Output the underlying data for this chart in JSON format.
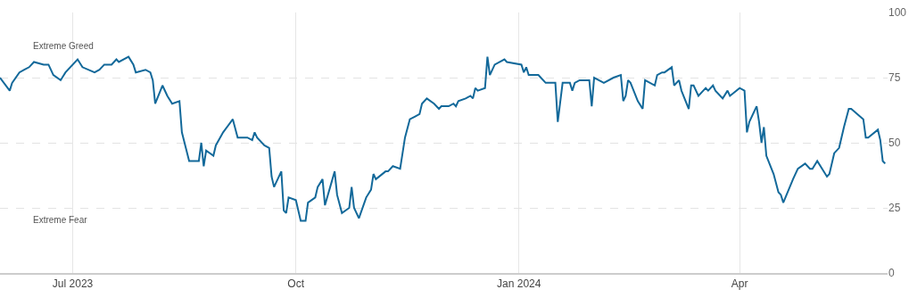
{
  "chart_data": {
    "type": "line",
    "x": [
      "2023-06-01",
      "2023-06-05",
      "2023-06-06",
      "2023-06-09",
      "2023-06-11",
      "2023-06-13",
      "2023-06-15",
      "2023-06-19",
      "2023-06-21",
      "2023-06-23",
      "2023-06-26",
      "2023-06-28",
      "2023-07-03",
      "2023-07-05",
      "2023-07-10",
      "2023-07-12",
      "2023-07-14",
      "2023-07-17",
      "2023-07-19",
      "2023-07-20",
      "2023-07-24",
      "2023-07-26",
      "2023-07-27",
      "2023-07-31",
      "2023-08-02",
      "2023-08-03",
      "2023-08-04",
      "2023-08-07",
      "2023-08-09",
      "2023-08-11",
      "2023-08-14",
      "2023-08-15",
      "2023-08-18",
      "2023-08-22",
      "2023-08-23",
      "2023-08-24",
      "2023-08-25",
      "2023-08-28",
      "2023-08-29",
      "2023-09-01",
      "2023-09-05",
      "2023-09-07",
      "2023-09-11",
      "2023-09-13",
      "2023-09-14",
      "2023-09-15",
      "2023-09-18",
      "2023-09-20",
      "2023-09-21",
      "2023-09-22",
      "2023-09-25",
      "2023-09-26",
      "2023-09-27",
      "2023-09-28",
      "2023-10-01",
      "2023-10-03",
      "2023-10-05",
      "2023-10-06",
      "2023-10-09",
      "2023-10-10",
      "2023-10-12",
      "2023-10-13",
      "2023-10-17",
      "2023-10-18",
      "2023-10-20",
      "2023-10-23",
      "2023-10-24",
      "2023-10-25",
      "2023-10-27",
      "2023-10-30",
      "2023-11-01",
      "2023-11-02",
      "2023-11-03",
      "2023-11-07",
      "2023-11-08",
      "2023-11-10",
      "2023-11-13",
      "2023-11-15",
      "2023-11-17",
      "2023-11-19",
      "2023-11-21",
      "2023-11-22",
      "2023-11-24",
      "2023-11-27",
      "2023-11-29",
      "2023-11-30",
      "2023-12-03",
      "2023-12-05",
      "2023-12-06",
      "2023-12-07",
      "2023-12-10",
      "2023-12-12",
      "2023-12-13",
      "2023-12-14",
      "2023-12-15",
      "2023-12-18",
      "2023-12-19",
      "2023-12-20",
      "2023-12-22",
      "2023-12-26",
      "2023-12-27",
      "2024-01-02",
      "2024-01-03",
      "2024-01-04",
      "2024-01-05",
      "2024-01-09",
      "2024-01-10",
      "2024-01-12",
      "2024-01-16",
      "2024-01-17",
      "2024-01-19",
      "2024-01-22",
      "2024-01-23",
      "2024-01-24",
      "2024-01-26",
      "2024-01-30",
      "2024-01-31",
      "2024-02-01",
      "2024-02-05",
      "2024-02-09",
      "2024-02-12",
      "2024-02-13",
      "2024-02-14",
      "2024-02-15",
      "2024-02-16",
      "2024-02-19",
      "2024-02-21",
      "2024-02-22",
      "2024-02-26",
      "2024-02-27",
      "2024-02-29",
      "2024-03-01",
      "2024-03-04",
      "2024-03-05",
      "2024-03-07",
      "2024-03-08",
      "2024-03-11",
      "2024-03-12",
      "2024-03-13",
      "2024-03-15",
      "2024-03-18",
      "2024-03-19",
      "2024-03-21",
      "2024-03-22",
      "2024-03-25",
      "2024-03-27",
      "2024-03-28",
      "2024-04-01",
      "2024-04-03",
      "2024-04-04",
      "2024-04-05",
      "2024-04-08",
      "2024-04-09",
      "2024-04-10",
      "2024-04-11",
      "2024-04-12",
      "2024-04-15",
      "2024-04-17",
      "2024-04-18",
      "2024-04-19",
      "2024-04-23",
      "2024-04-25",
      "2024-04-28",
      "2024-04-30",
      "2024-05-01",
      "2024-05-03",
      "2024-05-07",
      "2024-05-08",
      "2024-05-10",
      "2024-05-12",
      "2024-05-14",
      "2024-05-16",
      "2024-05-17",
      "2024-05-22",
      "2024-05-23",
      "2024-05-24",
      "2024-05-28",
      "2024-05-29",
      "2024-05-30",
      "2024-05-31"
    ],
    "series": [
      {
        "color": "#13699a",
        "values": [
          75,
          70,
          73,
          77,
          78,
          79,
          81,
          80,
          80,
          76,
          74,
          77,
          82,
          79,
          77,
          78,
          80,
          80,
          82,
          81,
          83,
          80,
          77,
          78,
          77,
          74,
          65,
          72,
          68,
          65,
          66,
          54,
          43,
          43,
          50,
          41,
          47,
          45,
          49,
          54,
          59,
          52,
          52,
          51,
          54,
          52,
          49,
          48,
          37,
          33,
          39,
          24,
          23,
          29,
          28,
          20,
          20,
          27,
          29,
          33,
          36,
          26,
          39,
          30,
          23,
          25,
          33,
          25,
          21,
          29,
          32,
          38,
          36,
          39,
          39,
          41,
          40,
          52,
          59,
          60,
          61,
          65,
          67,
          65,
          63,
          64,
          64,
          65,
          64,
          66,
          67,
          68,
          67,
          71,
          70,
          71,
          83,
          76,
          80,
          82,
          81,
          80,
          77,
          79,
          76,
          76,
          75,
          73,
          73,
          58,
          73,
          73,
          70,
          73,
          74,
          74,
          64,
          75,
          73,
          75,
          76,
          66,
          68,
          74,
          73,
          66,
          63,
          74,
          72,
          76,
          77,
          77,
          79,
          72,
          74,
          70,
          63,
          72,
          72,
          68,
          71,
          70,
          72,
          70,
          67,
          70,
          68,
          71,
          70,
          54,
          58,
          64,
          58,
          50,
          56,
          45,
          38,
          31,
          30,
          27,
          36,
          40,
          42,
          40,
          40,
          43,
          37,
          38,
          46,
          48,
          56,
          63,
          63,
          59,
          52,
          52,
          55,
          51,
          43,
          42
        ]
      }
    ],
    "xlim": [
      "2023-06-01",
      "2024-06-01"
    ],
    "xticks": [
      {
        "value": "2023-07-01",
        "label": "Jul 2023"
      },
      {
        "value": "2023-10-01",
        "label": "Oct"
      },
      {
        "value": "2024-01-01",
        "label": "Jan 2024"
      },
      {
        "value": "2024-04-01",
        "label": "Apr"
      }
    ],
    "ylim": [
      0,
      100
    ],
    "yticks": [
      0,
      25,
      50,
      75,
      100
    ],
    "grid": true,
    "marker": "none",
    "line_style": "solid",
    "annotations": [
      "Extreme Greed",
      "Extreme Fear"
    ]
  }
}
